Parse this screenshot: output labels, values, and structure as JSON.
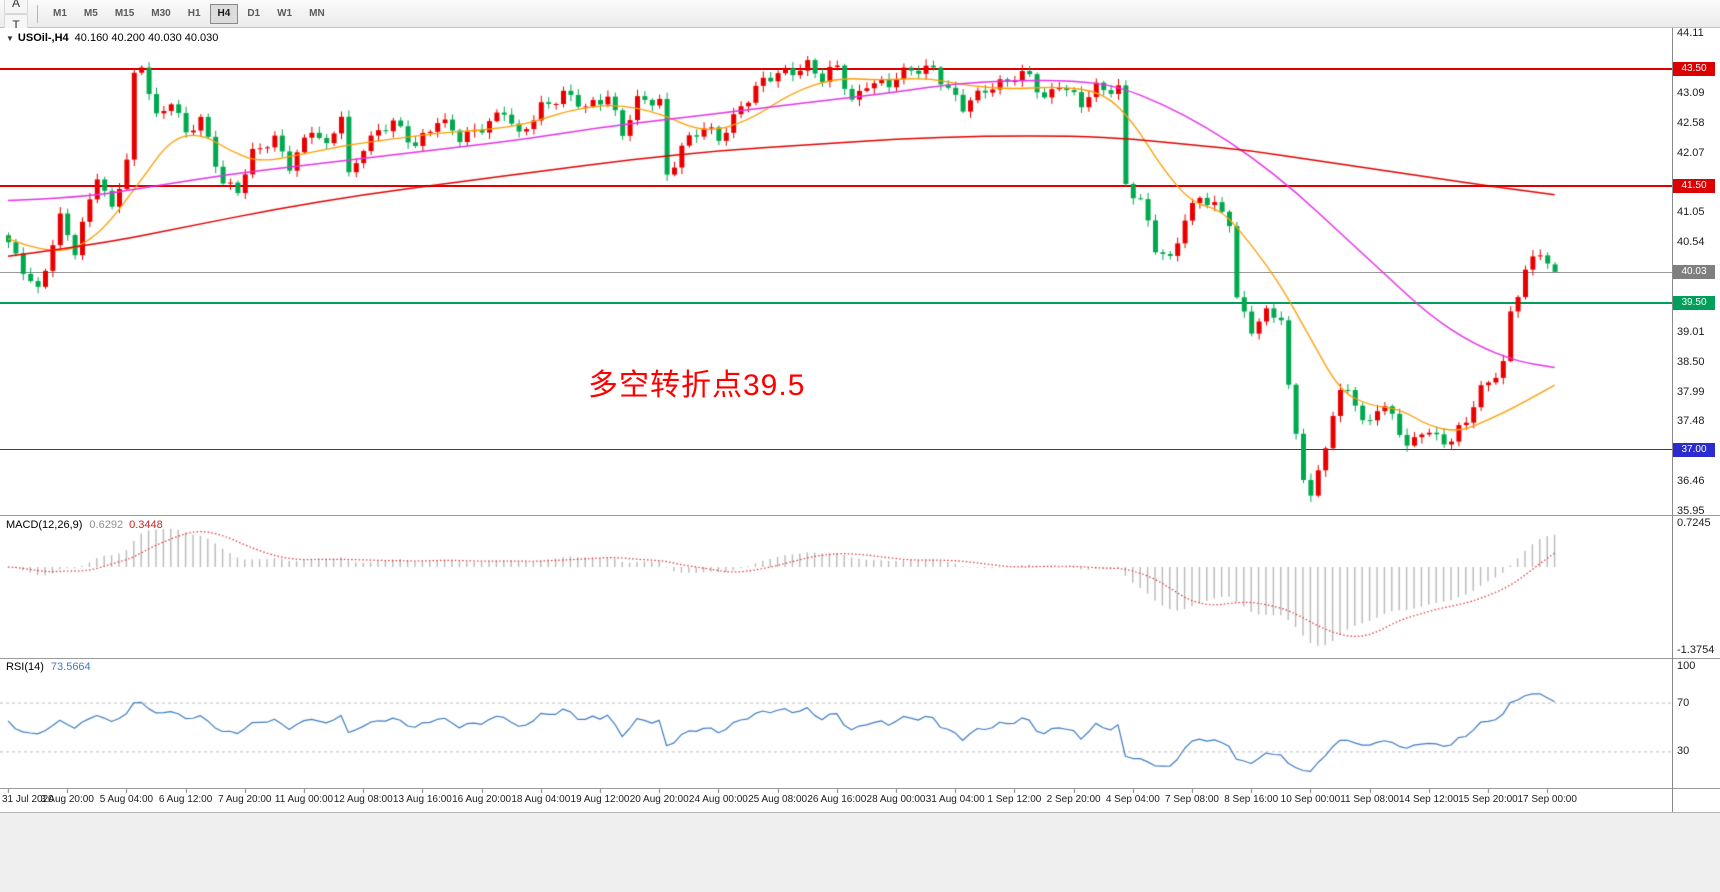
{
  "toolbar": {
    "left_items": [
      {
        "name": "chart-grid-icon",
        "glyph": "▦",
        "sub": "f"
      },
      {
        "name": "cursor-select-button",
        "glyph": "A"
      },
      {
        "name": "text-tool-button",
        "glyph": "T"
      },
      {
        "name": "line-style-dropdown",
        "glyph": "%",
        "caret": "▾"
      }
    ],
    "timeframes": [
      "M1",
      "M5",
      "M15",
      "M30",
      "H1",
      "H4",
      "D1",
      "W1",
      "MN"
    ],
    "active_timeframe": "H4"
  },
  "header": {
    "expander": "▼",
    "symbol": "USOil-,H4",
    "quotes": "40.160 40.200 40.030 40.030"
  },
  "time_axis": {
    "labels": [
      {
        "text": "31 Jul 2020",
        "bar": 0
      },
      {
        "text": "3 Aug 20:00",
        "bar": 8
      },
      {
        "text": "5 Aug 04:00",
        "bar": 16
      },
      {
        "text": "6 Aug 12:00",
        "bar": 24
      },
      {
        "text": "7 Aug 20:00",
        "bar": 32
      },
      {
        "text": "11 Aug 00:00",
        "bar": 40
      },
      {
        "text": "12 Aug 08:00",
        "bar": 48
      },
      {
        "text": "13 Aug 16:00",
        "bar": 56
      },
      {
        "text": "16 Aug 20:00",
        "bar": 64
      },
      {
        "text": "18 Aug 04:00",
        "bar": 72
      },
      {
        "text": "19 Aug 12:00",
        "bar": 80
      },
      {
        "text": "20 Aug 20:00",
        "bar": 88
      },
      {
        "text": "24 Aug 00:00",
        "bar": 96
      },
      {
        "text": "25 Aug 08:00",
        "bar": 104
      },
      {
        "text": "26 Aug 16:00",
        "bar": 112
      },
      {
        "text": "28 Aug 00:00",
        "bar": 120
      },
      {
        "text": "31 Aug 04:00",
        "bar": 128
      },
      {
        "text": "1 Sep 12:00",
        "bar": 136
      },
      {
        "text": "2 Sep 20:00",
        "bar": 144
      },
      {
        "text": "4 Sep 04:00",
        "bar": 152
      },
      {
        "text": "7 Sep 08:00",
        "bar": 160
      },
      {
        "text": "8 Sep 16:00",
        "bar": 168
      },
      {
        "text": "10 Sep 00:00",
        "bar": 176
      },
      {
        "text": "11 Sep 08:00",
        "bar": 184
      },
      {
        "text": "14 Sep 12:00",
        "bar": 192
      },
      {
        "text": "15 Sep 20:00",
        "bar": 200
      },
      {
        "text": "17 Sep 00:00",
        "bar": 208
      }
    ]
  },
  "chart_data": [
    {
      "type": "candlestick",
      "symbol": "USOil-",
      "timeframe": "H4",
      "bars": 210,
      "ylim": [
        35.88,
        44.2
      ],
      "colors": {
        "up": "#e80000",
        "down": "#00a94f"
      },
      "price_anchors": [
        [
          0,
          40.45
        ],
        [
          2,
          40.1
        ],
        [
          4,
          39.75
        ],
        [
          7,
          40.9
        ],
        [
          9,
          40.35
        ],
        [
          12,
          41.75
        ],
        [
          14,
          41.1
        ],
        [
          16,
          41.9
        ],
        [
          17,
          43.3
        ],
        [
          18,
          43.55
        ],
        [
          20,
          42.7
        ],
        [
          22,
          43.0
        ],
        [
          24,
          42.35
        ],
        [
          26,
          42.6
        ],
        [
          29,
          41.6
        ],
        [
          31,
          41.45
        ],
        [
          33,
          42.0
        ],
        [
          36,
          42.3
        ],
        [
          38,
          41.9
        ],
        [
          41,
          42.45
        ],
        [
          43,
          42.1
        ],
        [
          45,
          42.75
        ],
        [
          46,
          41.7
        ],
        [
          48,
          42.2
        ],
        [
          52,
          42.55
        ],
        [
          55,
          42.25
        ],
        [
          58,
          42.6
        ],
        [
          61,
          42.3
        ],
        [
          64,
          42.55
        ],
        [
          67,
          42.75
        ],
        [
          69,
          42.3
        ],
        [
          72,
          42.9
        ],
        [
          75,
          43.05
        ],
        [
          78,
          42.8
        ],
        [
          81,
          43.1
        ],
        [
          83,
          42.4
        ],
        [
          85,
          42.9
        ],
        [
          88,
          42.95
        ],
        [
          89,
          41.7
        ],
        [
          91,
          42.2
        ],
        [
          94,
          42.45
        ],
        [
          96,
          42.3
        ],
        [
          99,
          42.9
        ],
        [
          102,
          43.25
        ],
        [
          105,
          43.45
        ],
        [
          108,
          43.6
        ],
        [
          110,
          43.3
        ],
        [
          112,
          43.5
        ],
        [
          114,
          42.95
        ],
        [
          116,
          43.3
        ],
        [
          119,
          43.2
        ],
        [
          122,
          43.5
        ],
        [
          125,
          43.55
        ],
        [
          127,
          43.1
        ],
        [
          129,
          42.8
        ],
        [
          132,
          43.2
        ],
        [
          135,
          43.3
        ],
        [
          138,
          43.35
        ],
        [
          140,
          43.0
        ],
        [
          142,
          43.3
        ],
        [
          145,
          42.85
        ],
        [
          147,
          43.15
        ],
        [
          150,
          43.2
        ],
        [
          151,
          41.55
        ],
        [
          153,
          41.2
        ],
        [
          155,
          40.4
        ],
        [
          157,
          40.25
        ],
        [
          159,
          41.0
        ],
        [
          161,
          41.3
        ],
        [
          163,
          41.1
        ],
        [
          165,
          40.9
        ],
        [
          166,
          39.6
        ],
        [
          168,
          39.1
        ],
        [
          170,
          39.3
        ],
        [
          172,
          39.2
        ],
        [
          173,
          38.0
        ],
        [
          175,
          36.6
        ],
        [
          176,
          36.2
        ],
        [
          178,
          37.1
        ],
        [
          180,
          37.9
        ],
        [
          181,
          38.05
        ],
        [
          183,
          37.45
        ],
        [
          185,
          37.75
        ],
        [
          187,
          37.6
        ],
        [
          189,
          36.95
        ],
        [
          191,
          37.35
        ],
        [
          193,
          37.25
        ],
        [
          195,
          37.15
        ],
        [
          197,
          37.45
        ],
        [
          199,
          38.0
        ],
        [
          201,
          38.35
        ],
        [
          202,
          38.5
        ],
        [
          203,
          39.35
        ],
        [
          205,
          40.0
        ],
        [
          207,
          40.35
        ],
        [
          209,
          40.03
        ]
      ],
      "last_bar": {
        "open": 40.16,
        "high": 40.2,
        "low": 40.03,
        "close": 40.03
      },
      "y_ticks": [
        "44.11",
        "43.09",
        "42.58",
        "42.07",
        "41.05",
        "40.54",
        "39.01",
        "38.50",
        "37.99",
        "37.48",
        "36.46",
        "35.95"
      ],
      "price_boxes": [
        {
          "label": "43.50",
          "price": 43.5,
          "bg": "#dd0000"
        },
        {
          "label": "41.50",
          "price": 41.5,
          "bg": "#dd0000"
        },
        {
          "label": "40.03",
          "price": 40.03,
          "bg": "#7f7f7f"
        },
        {
          "label": "39.50",
          "price": 39.5,
          "bg": "#00a05a"
        },
        {
          "label": "37.00",
          "price": 37.0,
          "bg": "#2b2bd0"
        }
      ],
      "hlines": [
        {
          "label": "43.50",
          "price": 43.5,
          "color": "#e00000",
          "width": 2
        },
        {
          "label": "41.50",
          "price": 41.5,
          "color": "#e00000",
          "width": 2
        },
        {
          "label": "40.03",
          "price": 40.03,
          "color": "#9a9a9a",
          "width": 1
        },
        {
          "label": "39.50",
          "price": 39.5,
          "color": "#00a05a",
          "width": 1.5
        },
        {
          "label": "37.00",
          "price": 37.0,
          "color": "#2b2bd0",
          "width": 1.5
        }
      ],
      "ma_lines": [
        {
          "name": "ma-orange",
          "color": "#ff9c00",
          "width": 1.3,
          "anchors": [
            [
              0,
              40.6
            ],
            [
              6,
              40.3
            ],
            [
              12,
              40.6
            ],
            [
              18,
              41.6
            ],
            [
              22,
              42.3
            ],
            [
              26,
              42.4
            ],
            [
              30,
              42.1
            ],
            [
              34,
              41.9
            ],
            [
              40,
              42.05
            ],
            [
              46,
              42.2
            ],
            [
              52,
              42.3
            ],
            [
              58,
              42.4
            ],
            [
              64,
              42.45
            ],
            [
              70,
              42.55
            ],
            [
              76,
              42.8
            ],
            [
              82,
              42.9
            ],
            [
              88,
              42.75
            ],
            [
              94,
              42.4
            ],
            [
              100,
              42.6
            ],
            [
              106,
              43.1
            ],
            [
              112,
              43.35
            ],
            [
              118,
              43.3
            ],
            [
              124,
              43.35
            ],
            [
              130,
              43.2
            ],
            [
              136,
              43.15
            ],
            [
              142,
              43.2
            ],
            [
              148,
              43.1
            ],
            [
              152,
              42.6
            ],
            [
              156,
              41.8
            ],
            [
              160,
              41.2
            ],
            [
              164,
              41.1
            ],
            [
              168,
              40.5
            ],
            [
              172,
              39.8
            ],
            [
              176,
              38.9
            ],
            [
              180,
              38.0
            ],
            [
              184,
              37.75
            ],
            [
              188,
              37.7
            ],
            [
              192,
              37.4
            ],
            [
              196,
              37.3
            ],
            [
              200,
              37.5
            ],
            [
              204,
              37.75
            ],
            [
              209,
              38.1
            ]
          ]
        },
        {
          "name": "ma-magenta",
          "color": "#e632e6",
          "width": 1.5,
          "anchors": [
            [
              0,
              41.25
            ],
            [
              10,
              41.3
            ],
            [
              20,
              41.5
            ],
            [
              30,
              41.7
            ],
            [
              40,
              41.85
            ],
            [
              50,
              42.0
            ],
            [
              60,
              42.15
            ],
            [
              70,
              42.3
            ],
            [
              80,
              42.5
            ],
            [
              90,
              42.65
            ],
            [
              100,
              42.8
            ],
            [
              110,
              42.95
            ],
            [
              120,
              43.1
            ],
            [
              128,
              43.25
            ],
            [
              136,
              43.3
            ],
            [
              144,
              43.3
            ],
            [
              150,
              43.2
            ],
            [
              156,
              42.9
            ],
            [
              162,
              42.5
            ],
            [
              168,
              42.0
            ],
            [
              174,
              41.4
            ],
            [
              180,
              40.7
            ],
            [
              186,
              40.0
            ],
            [
              192,
              39.3
            ],
            [
              198,
              38.8
            ],
            [
              204,
              38.5
            ],
            [
              209,
              38.4
            ]
          ]
        },
        {
          "name": "ma-red",
          "color": "#e00000",
          "width": 1.5,
          "anchors": [
            [
              0,
              40.3
            ],
            [
              12,
              40.5
            ],
            [
              24,
              40.8
            ],
            [
              36,
              41.1
            ],
            [
              48,
              41.35
            ],
            [
              60,
              41.55
            ],
            [
              72,
              41.75
            ],
            [
              84,
              41.95
            ],
            [
              96,
              42.1
            ],
            [
              108,
              42.2
            ],
            [
              120,
              42.3
            ],
            [
              132,
              42.35
            ],
            [
              144,
              42.35
            ],
            [
              152,
              42.3
            ],
            [
              160,
              42.2
            ],
            [
              168,
              42.1
            ],
            [
              176,
              41.95
            ],
            [
              184,
              41.8
            ],
            [
              192,
              41.65
            ],
            [
              200,
              41.5
            ],
            [
              209,
              41.35
            ]
          ]
        }
      ],
      "annotation": {
        "text": "多空转折点39.5",
        "color": "#ff0000",
        "x": 588,
        "y": 332
      }
    },
    {
      "type": "macd",
      "label": "MACD(12,26,9)",
      "value_main": "0.6292",
      "value_signal": "0.3448",
      "fast": 12,
      "slow": 26,
      "signal": 9,
      "ticks": [
        "0.7245",
        "-1.3754"
      ],
      "display_max": 0.63,
      "display_min": -1.3,
      "colors": {
        "histogram": "#b9b9b9",
        "signal": "#e03030"
      }
    },
    {
      "type": "rsi",
      "label": "RSI(14)",
      "value": "73.5664",
      "period": 14,
      "ticks": [
        "100",
        "70",
        "30"
      ],
      "levels": [
        70,
        30
      ],
      "color": "#3f7cc4",
      "level_color": "#bdbdbd"
    }
  ]
}
